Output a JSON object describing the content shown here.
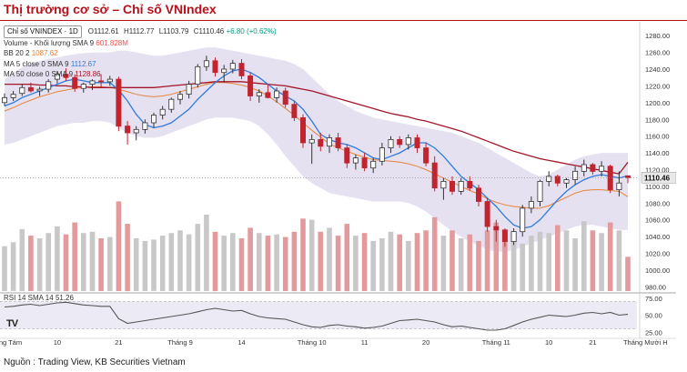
{
  "title": "Thị trường cơ sở – Chỉ số VNIndex",
  "source": "Nguồn : Trading View, KB Securities Vietnam",
  "legend": {
    "symbol": "Chỉ số VNINDEX · 1D",
    "open": "O1112.61",
    "high": "H1112.77",
    "low": "L1103.79",
    "close": "C1110.46",
    "change": "+6.80 (+0.62%)",
    "volume_label": "Volume - Khối lượng SMA 9",
    "volume_value": "601.828M",
    "bb_label": "BB 20 2",
    "bb_value": "1087.62",
    "ma5_label": "MA 5 close 0 SMA 9",
    "ma5_value": "1112.67",
    "ma50_label": "MA 50 close 0 SMA 9",
    "ma50_value": "1128.86",
    "rsi_label": "RSI 14 SMA 14",
    "rsi_value": "51.26",
    "tv_logo": "TV"
  },
  "chart_data": {
    "type": "candlestick",
    "title": "Chỉ số VNINDEX · 1D",
    "price_axis": {
      "ticks": [
        "1280.00",
        "1260.00",
        "1240.00",
        "1220.00",
        "1200.00",
        "1180.00",
        "1160.00",
        "1140.00",
        "1120.00",
        "1100.00",
        "1080.00",
        "1060.00",
        "1040.00",
        "1020.00",
        "1000.00",
        "980.00"
      ],
      "ylim": [
        975,
        1290
      ],
      "last_price_label": "1110.46",
      "last_price": 1110.46
    },
    "rsi_axis": {
      "ticks": [
        "75.00",
        "50.00",
        "25.00"
      ],
      "ylim": [
        20,
        80
      ],
      "upper": 70,
      "lower": 30
    },
    "x_axis_labels": [
      "Tháng Tám",
      "10",
      "21",
      "Tháng 9",
      "14",
      "Tháng 10",
      "11",
      "20",
      "Tháng 11",
      "10",
      "21",
      "Tháng Mười H"
    ],
    "x_axis_label_index": [
      0,
      6,
      13,
      20,
      27,
      35,
      41,
      48,
      56,
      62,
      67,
      73
    ],
    "candles": [
      {
        "o": 1200,
        "h": 1211,
        "l": 1196,
        "c": 1206
      },
      {
        "o": 1206,
        "h": 1214,
        "l": 1202,
        "c": 1210
      },
      {
        "o": 1211,
        "h": 1222,
        "l": 1208,
        "c": 1218
      },
      {
        "o": 1218,
        "h": 1224,
        "l": 1212,
        "c": 1214
      },
      {
        "o": 1214,
        "h": 1219,
        "l": 1208,
        "c": 1216
      },
      {
        "o": 1216,
        "h": 1228,
        "l": 1212,
        "c": 1225
      },
      {
        "o": 1228,
        "h": 1237,
        "l": 1223,
        "c": 1234
      },
      {
        "o": 1234,
        "h": 1241,
        "l": 1226,
        "c": 1230
      },
      {
        "o": 1230,
        "h": 1234,
        "l": 1213,
        "c": 1217
      },
      {
        "o": 1217,
        "h": 1224,
        "l": 1212,
        "c": 1222
      },
      {
        "o": 1222,
        "h": 1228,
        "l": 1215,
        "c": 1226
      },
      {
        "o": 1226,
        "h": 1234,
        "l": 1218,
        "c": 1225
      },
      {
        "o": 1225,
        "h": 1232,
        "l": 1220,
        "c": 1228
      },
      {
        "o": 1228,
        "h": 1231,
        "l": 1166,
        "c": 1172
      },
      {
        "o": 1172,
        "h": 1178,
        "l": 1150,
        "c": 1164
      },
      {
        "o": 1164,
        "h": 1172,
        "l": 1155,
        "c": 1168
      },
      {
        "o": 1168,
        "h": 1180,
        "l": 1163,
        "c": 1176
      },
      {
        "o": 1176,
        "h": 1188,
        "l": 1170,
        "c": 1185
      },
      {
        "o": 1185,
        "h": 1196,
        "l": 1180,
        "c": 1192
      },
      {
        "o": 1192,
        "h": 1206,
        "l": 1188,
        "c": 1204
      },
      {
        "o": 1204,
        "h": 1214,
        "l": 1198,
        "c": 1210
      },
      {
        "o": 1210,
        "h": 1226,
        "l": 1205,
        "c": 1222
      },
      {
        "o": 1222,
        "h": 1246,
        "l": 1218,
        "c": 1243
      },
      {
        "o": 1243,
        "h": 1256,
        "l": 1238,
        "c": 1250
      },
      {
        "o": 1250,
        "h": 1254,
        "l": 1231,
        "c": 1236
      },
      {
        "o": 1236,
        "h": 1245,
        "l": 1224,
        "c": 1240
      },
      {
        "o": 1240,
        "h": 1251,
        "l": 1235,
        "c": 1247
      },
      {
        "o": 1247,
        "h": 1252,
        "l": 1228,
        "c": 1232
      },
      {
        "o": 1232,
        "h": 1236,
        "l": 1202,
        "c": 1208
      },
      {
        "o": 1208,
        "h": 1216,
        "l": 1200,
        "c": 1212
      },
      {
        "o": 1212,
        "h": 1222,
        "l": 1205,
        "c": 1206
      },
      {
        "o": 1206,
        "h": 1218,
        "l": 1200,
        "c": 1214
      },
      {
        "o": 1214,
        "h": 1218,
        "l": 1194,
        "c": 1198
      },
      {
        "o": 1198,
        "h": 1202,
        "l": 1178,
        "c": 1182
      },
      {
        "o": 1182,
        "h": 1186,
        "l": 1146,
        "c": 1152
      },
      {
        "o": 1152,
        "h": 1162,
        "l": 1127,
        "c": 1156
      },
      {
        "o": 1156,
        "h": 1164,
        "l": 1142,
        "c": 1148
      },
      {
        "o": 1148,
        "h": 1162,
        "l": 1140,
        "c": 1158
      },
      {
        "o": 1158,
        "h": 1164,
        "l": 1142,
        "c": 1146
      },
      {
        "o": 1146,
        "h": 1150,
        "l": 1122,
        "c": 1128
      },
      {
        "o": 1128,
        "h": 1138,
        "l": 1120,
        "c": 1134
      },
      {
        "o": 1134,
        "h": 1140,
        "l": 1118,
        "c": 1122
      },
      {
        "o": 1122,
        "h": 1134,
        "l": 1116,
        "c": 1130
      },
      {
        "o": 1130,
        "h": 1152,
        "l": 1125,
        "c": 1146
      },
      {
        "o": 1146,
        "h": 1160,
        "l": 1140,
        "c": 1156
      },
      {
        "o": 1156,
        "h": 1160,
        "l": 1146,
        "c": 1150
      },
      {
        "o": 1150,
        "h": 1162,
        "l": 1144,
        "c": 1158
      },
      {
        "o": 1158,
        "h": 1162,
        "l": 1140,
        "c": 1146
      },
      {
        "o": 1146,
        "h": 1152,
        "l": 1124,
        "c": 1128
      },
      {
        "o": 1128,
        "h": 1136,
        "l": 1094,
        "c": 1098
      },
      {
        "o": 1098,
        "h": 1110,
        "l": 1084,
        "c": 1106
      },
      {
        "o": 1106,
        "h": 1112,
        "l": 1090,
        "c": 1094
      },
      {
        "o": 1094,
        "h": 1110,
        "l": 1090,
        "c": 1106
      },
      {
        "o": 1106,
        "h": 1112,
        "l": 1095,
        "c": 1098
      },
      {
        "o": 1098,
        "h": 1102,
        "l": 1076,
        "c": 1082
      },
      {
        "o": 1082,
        "h": 1086,
        "l": 1046,
        "c": 1052
      },
      {
        "o": 1052,
        "h": 1060,
        "l": 1034,
        "c": 1048
      },
      {
        "o": 1048,
        "h": 1050,
        "l": 1028,
        "c": 1034
      },
      {
        "o": 1034,
        "h": 1050,
        "l": 1030,
        "c": 1046
      },
      {
        "o": 1046,
        "h": 1078,
        "l": 1040,
        "c": 1074
      },
      {
        "o": 1074,
        "h": 1088,
        "l": 1068,
        "c": 1082
      },
      {
        "o": 1082,
        "h": 1108,
        "l": 1076,
        "c": 1106
      },
      {
        "o": 1106,
        "h": 1118,
        "l": 1100,
        "c": 1112
      },
      {
        "o": 1112,
        "h": 1114,
        "l": 1100,
        "c": 1104
      },
      {
        "o": 1104,
        "h": 1110,
        "l": 1098,
        "c": 1108
      },
      {
        "o": 1108,
        "h": 1124,
        "l": 1102,
        "c": 1118
      },
      {
        "o": 1118,
        "h": 1132,
        "l": 1112,
        "c": 1126
      },
      {
        "o": 1126,
        "h": 1128,
        "l": 1114,
        "c": 1118
      },
      {
        "o": 1118,
        "h": 1130,
        "l": 1112,
        "c": 1124
      },
      {
        "o": 1124,
        "h": 1126,
        "l": 1092,
        "c": 1096
      },
      {
        "o": 1096,
        "h": 1118,
        "l": 1088,
        "c": 1104
      },
      {
        "o": 1112.61,
        "h": 1112.77,
        "l": 1103.79,
        "c": 1110.46
      }
    ],
    "volume": [
      34,
      37,
      47,
      42,
      40,
      44,
      49,
      43,
      52,
      44,
      45,
      40,
      41,
      68,
      51,
      40,
      38,
      39,
      42,
      44,
      46,
      43,
      51,
      58,
      45,
      42,
      44,
      40,
      48,
      44,
      42,
      43,
      41,
      45,
      55,
      54,
      45,
      48,
      42,
      51,
      42,
      44,
      38,
      40,
      45,
      43,
      38,
      44,
      46,
      56,
      42,
      46,
      40,
      43,
      38,
      46,
      52,
      37,
      38,
      36,
      42,
      45,
      44,
      50,
      46,
      40,
      53,
      46,
      44,
      52,
      46,
      26
    ],
    "bb_upper": [
      1228,
      1236,
      1242,
      1246,
      1250,
      1252,
      1254,
      1256,
      1258,
      1259,
      1260,
      1260,
      1260,
      1262,
      1262,
      1260,
      1258,
      1256,
      1256,
      1258,
      1260,
      1262,
      1264,
      1266,
      1266,
      1264,
      1262,
      1260,
      1258,
      1256,
      1254,
      1252,
      1250,
      1246,
      1240,
      1230,
      1220,
      1210,
      1202,
      1196,
      1190,
      1186,
      1182,
      1180,
      1178,
      1176,
      1174,
      1172,
      1170,
      1168,
      1166,
      1164,
      1160,
      1156,
      1152,
      1146,
      1140,
      1134,
      1128,
      1122,
      1116,
      1112,
      1114,
      1120,
      1126,
      1132,
      1136,
      1138,
      1140,
      1140,
      1140,
      1140
    ],
    "bb_lower": [
      1150,
      1152,
      1156,
      1160,
      1164,
      1168,
      1172,
      1174,
      1176,
      1176,
      1178,
      1178,
      1176,
      1170,
      1164,
      1160,
      1158,
      1158,
      1160,
      1164,
      1168,
      1172,
      1176,
      1180,
      1182,
      1182,
      1182,
      1180,
      1178,
      1172,
      1162,
      1150,
      1136,
      1124,
      1112,
      1104,
      1098,
      1092,
      1090,
      1088,
      1086,
      1084,
      1082,
      1082,
      1082,
      1082,
      1080,
      1076,
      1070,
      1062,
      1054,
      1046,
      1040,
      1034,
      1030,
      1024,
      1022,
      1022,
      1024,
      1028,
      1032,
      1036,
      1040,
      1044,
      1048,
      1052,
      1054,
      1054,
      1052,
      1050,
      1048,
      1048
    ],
    "ma5": [
      1196,
      1200,
      1206,
      1210,
      1214,
      1218,
      1222,
      1226,
      1228,
      1226,
      1224,
      1224,
      1224,
      1215,
      1202,
      1186,
      1174,
      1170,
      1172,
      1176,
      1184,
      1192,
      1204,
      1214,
      1224,
      1232,
      1238,
      1240,
      1236,
      1230,
      1222,
      1214,
      1208,
      1202,
      1192,
      1178,
      1162,
      1156,
      1152,
      1150,
      1146,
      1140,
      1134,
      1132,
      1136,
      1140,
      1146,
      1152,
      1152,
      1146,
      1136,
      1124,
      1112,
      1104,
      1096,
      1086,
      1076,
      1064,
      1054,
      1050,
      1052,
      1060,
      1072,
      1084,
      1094,
      1102,
      1108,
      1112,
      1114,
      1112,
      1110,
      1112.67
    ],
    "bb_mid": [
      1190,
      1194,
      1199,
      1203,
      1207,
      1210,
      1213,
      1215,
      1217,
      1218,
      1219,
      1219,
      1218,
      1216,
      1213,
      1210,
      1208,
      1207,
      1208,
      1210,
      1213,
      1216,
      1219,
      1222,
      1224,
      1224,
      1223,
      1221,
      1218,
      1214,
      1208,
      1201,
      1193,
      1185,
      1176,
      1167,
      1159,
      1151,
      1146,
      1142,
      1138,
      1135,
      1132,
      1131,
      1130,
      1129,
      1127,
      1124,
      1120,
      1115,
      1110,
      1105,
      1100,
      1095,
      1091,
      1085,
      1081,
      1078,
      1076,
      1075,
      1074,
      1074,
      1077,
      1082,
      1087,
      1092,
      1095,
      1096,
      1096,
      1095,
      1094,
      1087.62
    ],
    "ma50": [
      1222,
      1222,
      1222,
      1222,
      1221,
      1221,
      1220,
      1220,
      1219,
      1219,
      1218,
      1218,
      1218,
      1218,
      1218,
      1218,
      1218,
      1218,
      1219,
      1220,
      1221,
      1222,
      1223,
      1224,
      1225,
      1225,
      1225,
      1225,
      1224,
      1223,
      1222,
      1221,
      1220,
      1218,
      1216,
      1214,
      1211,
      1208,
      1205,
      1202,
      1199,
      1196,
      1193,
      1190,
      1187,
      1185,
      1183,
      1180,
      1178,
      1175,
      1172,
      1169,
      1166,
      1162,
      1158,
      1154,
      1150,
      1146,
      1142,
      1139,
      1136,
      1133,
      1131,
      1129,
      1127,
      1125,
      1123,
      1121,
      1119,
      1117,
      1115,
      1128.86
    ],
    "rsi": [
      62,
      63,
      65,
      66,
      64,
      66,
      68,
      69,
      67,
      65,
      64,
      63,
      63,
      45,
      38,
      40,
      42,
      44,
      46,
      48,
      50,
      52,
      55,
      58,
      60,
      58,
      56,
      57,
      52,
      48,
      46,
      45,
      44,
      40,
      36,
      33,
      32,
      35,
      36,
      34,
      33,
      31,
      32,
      34,
      38,
      42,
      43,
      44,
      42,
      40,
      36,
      33,
      34,
      32,
      30,
      28,
      28,
      30,
      35,
      40,
      44,
      47,
      50,
      49,
      48,
      50,
      53,
      54,
      52,
      54,
      50,
      51.26
    ]
  }
}
